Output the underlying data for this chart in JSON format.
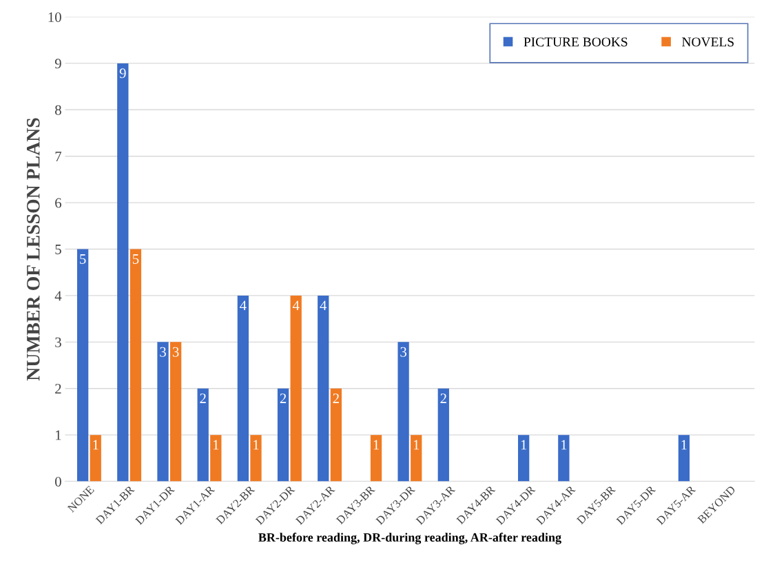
{
  "chart_data": {
    "type": "bar",
    "xlabel": "BR-before reading, DR-during reading, AR-after reading",
    "ylabel": "NUMBER OF LESSON PLANS",
    "categories": [
      "NONE",
      "DAY1-BR",
      "DAY1-DR",
      "DAY1-AR",
      "DAY2-BR",
      "DAY2-DR",
      "DAY2-AR",
      "DAY3-BR",
      "DAY3-DR",
      "DAY3-AR",
      "DAY4-BR",
      "DAY4-DR",
      "DAY4-AR",
      "DAY5-BR",
      "DAY5-DR",
      "DAY5-AR",
      "BEYOND"
    ],
    "series": [
      {
        "name": "PICTURE BOOKS",
        "color": "#3a6cc8",
        "values": [
          5,
          9,
          3,
          2,
          4,
          2,
          4,
          null,
          3,
          2,
          null,
          1,
          1,
          null,
          null,
          1,
          null
        ]
      },
      {
        "name": "NOVELS",
        "color": "#f07a22",
        "values": [
          1,
          5,
          3,
          1,
          1,
          4,
          2,
          1,
          1,
          null,
          null,
          null,
          null,
          null,
          null,
          null,
          null
        ]
      }
    ],
    "ylim": [
      0,
      10
    ],
    "yticks": [
      0,
      1,
      2,
      3,
      4,
      5,
      6,
      7,
      8,
      9,
      10
    ],
    "grid": "y",
    "legend": "top right",
    "data_labels": true
  }
}
